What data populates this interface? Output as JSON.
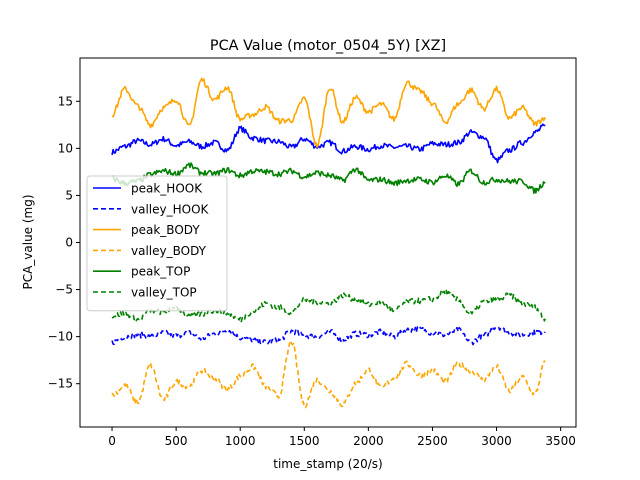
{
  "chart_data": {
    "type": "line",
    "title": "PCA Value (motor_0504_5Y) [XZ]",
    "xlabel": "time_stamp (20/s)",
    "ylabel": "PCA_value (mg)",
    "xlim": [
      -250,
      3620
    ],
    "ylim": [
      -19.6,
      19.6
    ],
    "x_ticks": [
      0,
      500,
      1000,
      1500,
      2000,
      2500,
      3000,
      3500
    ],
    "x_tick_labels": [
      "0",
      "500",
      "1000",
      "1500",
      "2000",
      "2500",
      "3000",
      "3500"
    ],
    "y_ticks": [
      15,
      10,
      5,
      0,
      -5,
      -10,
      -15
    ],
    "y_tick_labels": [
      "15",
      "10",
      "5",
      "0",
      "−5",
      "−10",
      "−15"
    ],
    "legend_placement": "center-left",
    "grid": false,
    "series": [
      {
        "name": "peak_HOOK",
        "color": "#0000ff",
        "style": "solid",
        "x": [
          0,
          100,
          200,
          300,
          400,
          500,
          600,
          700,
          800,
          900,
          1000,
          1100,
          1200,
          1300,
          1400,
          1500,
          1600,
          1700,
          1800,
          1900,
          2000,
          2100,
          2200,
          2300,
          2400,
          2500,
          2600,
          2700,
          2800,
          2900,
          3000,
          3100,
          3200,
          3300,
          3380
        ],
        "values": [
          9.6,
          10.2,
          10.8,
          10.4,
          11.0,
          10.3,
          10.7,
          10.2,
          10.6,
          9.8,
          12.1,
          11.1,
          10.8,
          10.7,
          10.1,
          11.0,
          10.2,
          10.6,
          9.7,
          10.2,
          9.9,
          10.3,
          10.1,
          10.2,
          9.9,
          10.5,
          10.4,
          10.6,
          11.7,
          11.2,
          8.7,
          9.8,
          10.6,
          11.7,
          12.4
        ]
      },
      {
        "name": "valley_HOOK",
        "color": "#0000ff",
        "style": "dashed",
        "x": [
          0,
          100,
          200,
          300,
          400,
          500,
          600,
          700,
          800,
          900,
          1000,
          1100,
          1200,
          1300,
          1400,
          1500,
          1600,
          1700,
          1800,
          1900,
          2000,
          2100,
          2200,
          2300,
          2400,
          2500,
          2600,
          2700,
          2800,
          2900,
          3000,
          3100,
          3200,
          3300,
          3380
        ],
        "values": [
          -10.6,
          -10.0,
          -9.8,
          -10.0,
          -9.6,
          -9.9,
          -9.6,
          -10.2,
          -9.7,
          -9.3,
          -10.1,
          -10.4,
          -10.6,
          -10.4,
          -9.4,
          -9.9,
          -10.0,
          -9.5,
          -10.3,
          -9.7,
          -9.8,
          -9.5,
          -10.0,
          -9.3,
          -9.2,
          -9.6,
          -9.8,
          -9.3,
          -10.6,
          -9.9,
          -8.9,
          -9.6,
          -9.8,
          -9.5,
          -9.5
        ]
      },
      {
        "name": "peak_BODY",
        "color": "#ffa500",
        "style": "solid",
        "x": [
          0,
          100,
          200,
          300,
          400,
          500,
          600,
          700,
          800,
          900,
          1000,
          1100,
          1200,
          1300,
          1400,
          1500,
          1600,
          1700,
          1800,
          1900,
          2000,
          2100,
          2200,
          2300,
          2400,
          2500,
          2600,
          2700,
          2800,
          2900,
          3000,
          3100,
          3200,
          3300,
          3380
        ],
        "values": [
          13.6,
          16.3,
          14.5,
          12.5,
          14.3,
          15.2,
          12.3,
          17.3,
          15.2,
          16.5,
          13.1,
          13.6,
          14.4,
          12.9,
          13.0,
          15.3,
          10.3,
          16.5,
          12.8,
          15.4,
          13.9,
          14.7,
          13.1,
          17.0,
          16.1,
          14.8,
          12.8,
          14.7,
          16.2,
          14.2,
          16.3,
          13.2,
          14.3,
          12.6,
          13.3
        ]
      },
      {
        "name": "valley_BODY",
        "color": "#ffa500",
        "style": "dashed",
        "x": [
          0,
          100,
          200,
          300,
          400,
          500,
          600,
          700,
          800,
          900,
          1000,
          1100,
          1200,
          1300,
          1400,
          1500,
          1600,
          1700,
          1800,
          1900,
          2000,
          2100,
          2200,
          2300,
          2400,
          2500,
          2600,
          2700,
          2800,
          2900,
          3000,
          3100,
          3200,
          3300,
          3380
        ],
        "values": [
          -16.2,
          -15.2,
          -17.0,
          -13.0,
          -16.7,
          -14.8,
          -15.3,
          -13.6,
          -14.5,
          -15.6,
          -14.2,
          -13.2,
          -15.3,
          -16.3,
          -10.5,
          -17.3,
          -14.6,
          -15.8,
          -17.2,
          -15.0,
          -13.5,
          -15.5,
          -14.4,
          -12.9,
          -14.1,
          -13.6,
          -14.8,
          -12.9,
          -13.6,
          -14.6,
          -13.2,
          -15.8,
          -14.3,
          -16.1,
          -12.6
        ]
      },
      {
        "name": "peak_TOP",
        "color": "#008000",
        "style": "solid",
        "x": [
          0,
          100,
          200,
          300,
          400,
          500,
          600,
          700,
          800,
          900,
          1000,
          1100,
          1200,
          1300,
          1400,
          1500,
          1600,
          1700,
          1800,
          1900,
          2000,
          2100,
          2200,
          2300,
          2400,
          2500,
          2600,
          2700,
          2800,
          2900,
          3000,
          3100,
          3200,
          3300,
          3380
        ],
        "values": [
          6.8,
          6.3,
          6.5,
          7.2,
          7.6,
          7.3,
          8.2,
          7.4,
          7.3,
          7.7,
          7.1,
          7.6,
          7.5,
          7.3,
          7.6,
          7.0,
          7.4,
          7.1,
          6.6,
          7.8,
          6.6,
          6.7,
          6.3,
          6.6,
          6.7,
          6.4,
          7.1,
          6.2,
          7.6,
          6.4,
          6.7,
          6.5,
          6.5,
          5.5,
          6.4
        ]
      },
      {
        "name": "valley_TOP",
        "color": "#008000",
        "style": "dashed",
        "x": [
          0,
          100,
          200,
          300,
          400,
          500,
          600,
          700,
          800,
          900,
          1000,
          1100,
          1200,
          1300,
          1400,
          1500,
          1600,
          1700,
          1800,
          1900,
          2000,
          2100,
          2200,
          2300,
          2400,
          2500,
          2600,
          2700,
          2800,
          2900,
          3000,
          3100,
          3200,
          3300,
          3380
        ],
        "values": [
          -7.8,
          -7.5,
          -8.2,
          -7.2,
          -7.4,
          -6.9,
          -7.9,
          -7.6,
          -7.2,
          -7.5,
          -8.2,
          -7.3,
          -6.5,
          -6.9,
          -7.4,
          -6.1,
          -6.3,
          -6.5,
          -5.6,
          -6.1,
          -6.6,
          -6.3,
          -7.3,
          -6.3,
          -6.2,
          -6.0,
          -5.3,
          -6.1,
          -7.6,
          -6.3,
          -6.1,
          -5.6,
          -6.5,
          -6.9,
          -8.1
        ]
      }
    ]
  }
}
